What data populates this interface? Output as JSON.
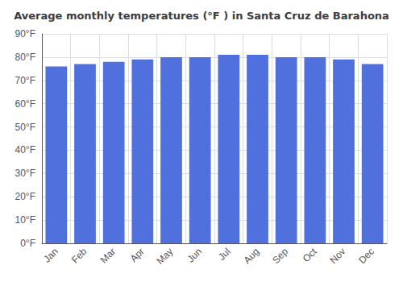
{
  "chart_data": {
    "type": "bar",
    "title": "Average monthly temperatures (°F ) in Santa Cruz de Barahona",
    "categories": [
      "Jan",
      "Feb",
      "Mar",
      "Apr",
      "May",
      "Jun",
      "Jul",
      "Aug",
      "Sep",
      "Oct",
      "Nov",
      "Dec"
    ],
    "values": [
      76,
      77,
      78,
      79,
      80,
      80,
      81,
      81,
      80,
      80,
      79,
      77
    ],
    "ylim": [
      0,
      90
    ],
    "yticks": [
      {
        "value": 0,
        "label": "0°F"
      },
      {
        "value": 10,
        "label": "10°F"
      },
      {
        "value": 20,
        "label": "20°F"
      },
      {
        "value": 30,
        "label": "30°F"
      },
      {
        "value": 40,
        "label": "40°F"
      },
      {
        "value": 50,
        "label": "50°F"
      },
      {
        "value": 60,
        "label": "60°F"
      },
      {
        "value": 70,
        "label": "70°F"
      },
      {
        "value": 80,
        "label": "80°F"
      },
      {
        "value": 90,
        "label": "90°F"
      }
    ],
    "grid": true
  }
}
